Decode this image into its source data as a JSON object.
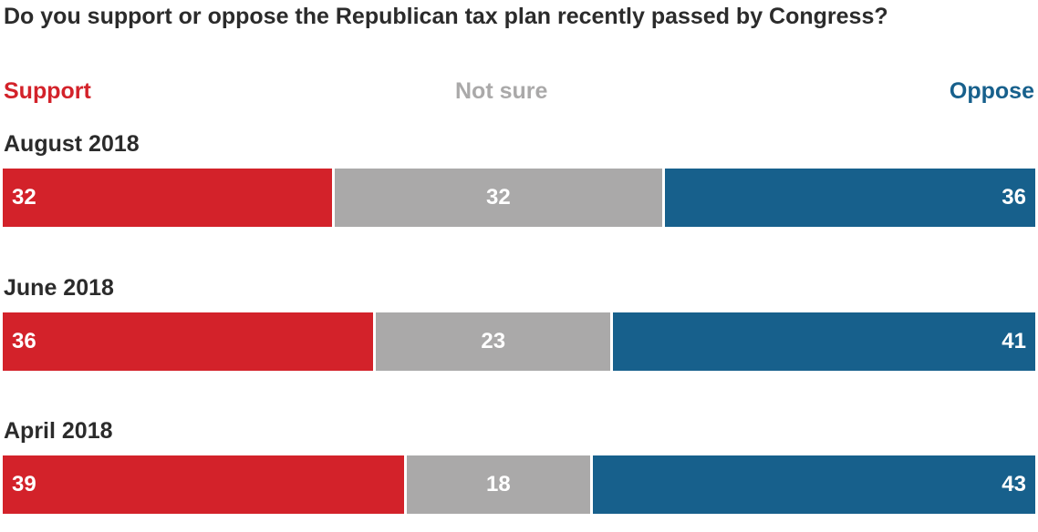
{
  "title": "Do you support or oppose the Republican tax plan recently passed by Congress?",
  "legend": [
    {
      "label": "Support",
      "color": "#d3222a"
    },
    {
      "label": "Not sure",
      "color": "#aaa9a9"
    },
    {
      "label": "Oppose",
      "color": "#17608c"
    }
  ],
  "chart_data": {
    "type": "bar",
    "orientation": "horizontal",
    "stacked": true,
    "categories": [
      "August 2018",
      "June 2018",
      "April 2018"
    ],
    "series": [
      {
        "name": "Support",
        "values": [
          32,
          36,
          39
        ],
        "color": "#d3222a"
      },
      {
        "name": "Not sure",
        "values": [
          32,
          23,
          18
        ],
        "color": "#aaa9a9"
      },
      {
        "name": "Oppose",
        "values": [
          36,
          41,
          43
        ],
        "color": "#17608c"
      }
    ],
    "title": "Do you support or oppose the Republican tax plan recently passed by Congress?",
    "xlim": [
      0,
      100
    ],
    "legend_position": "top",
    "grid": false
  }
}
